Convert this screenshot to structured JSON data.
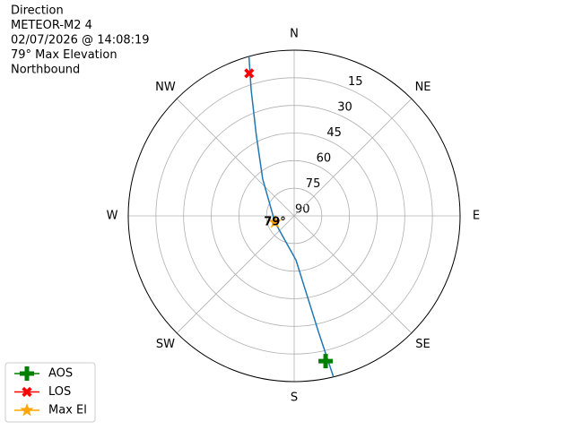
{
  "chart_data": {
    "type": "polar",
    "info": [
      "Direction",
      "METEOR-M2 4",
      "02/07/2026 @ 14:08:19",
      "79° Max Elevation",
      "Northbound"
    ],
    "xlim": [
      0,
      360
    ],
    "xticks": [
      {
        "value": 0,
        "label": "N"
      },
      {
        "value": 45,
        "label": "NE"
      },
      {
        "value": 90,
        "label": "E"
      },
      {
        "value": 135,
        "label": "SE"
      },
      {
        "value": 180,
        "label": "S"
      },
      {
        "value": 225,
        "label": "SW"
      },
      {
        "value": 270,
        "label": "W"
      },
      {
        "value": 315,
        "label": "NW"
      }
    ],
    "ylim": [
      90,
      0
    ],
    "yticks": [
      15,
      30,
      45,
      60,
      75,
      90
    ],
    "grid": true,
    "legend": "lower left",
    "track": {
      "color": "#1f77b4",
      "x": [
        166.3,
        168.2,
        177.7,
        252,
        319.5,
        335,
        341.2,
        344.2
      ],
      "values": [
        0,
        25.8,
        66,
        79,
        63.7,
        41.3,
        17.5,
        0
      ]
    },
    "series": [
      {
        "name": "AOS",
        "color": "#008000",
        "marker": "plus",
        "x": [
          167.8
        ],
        "values": [
          9.3
        ]
      },
      {
        "name": "LOS",
        "color": "#ff0000",
        "marker": "cross",
        "x": [
          342.5
        ],
        "values": [
          8.8
        ]
      },
      {
        "name": "Max El",
        "color": "#ffa500",
        "marker": "star",
        "x": [
          252
        ],
        "values": [
          79
        ],
        "value_labels": [
          "79°"
        ]
      }
    ]
  }
}
